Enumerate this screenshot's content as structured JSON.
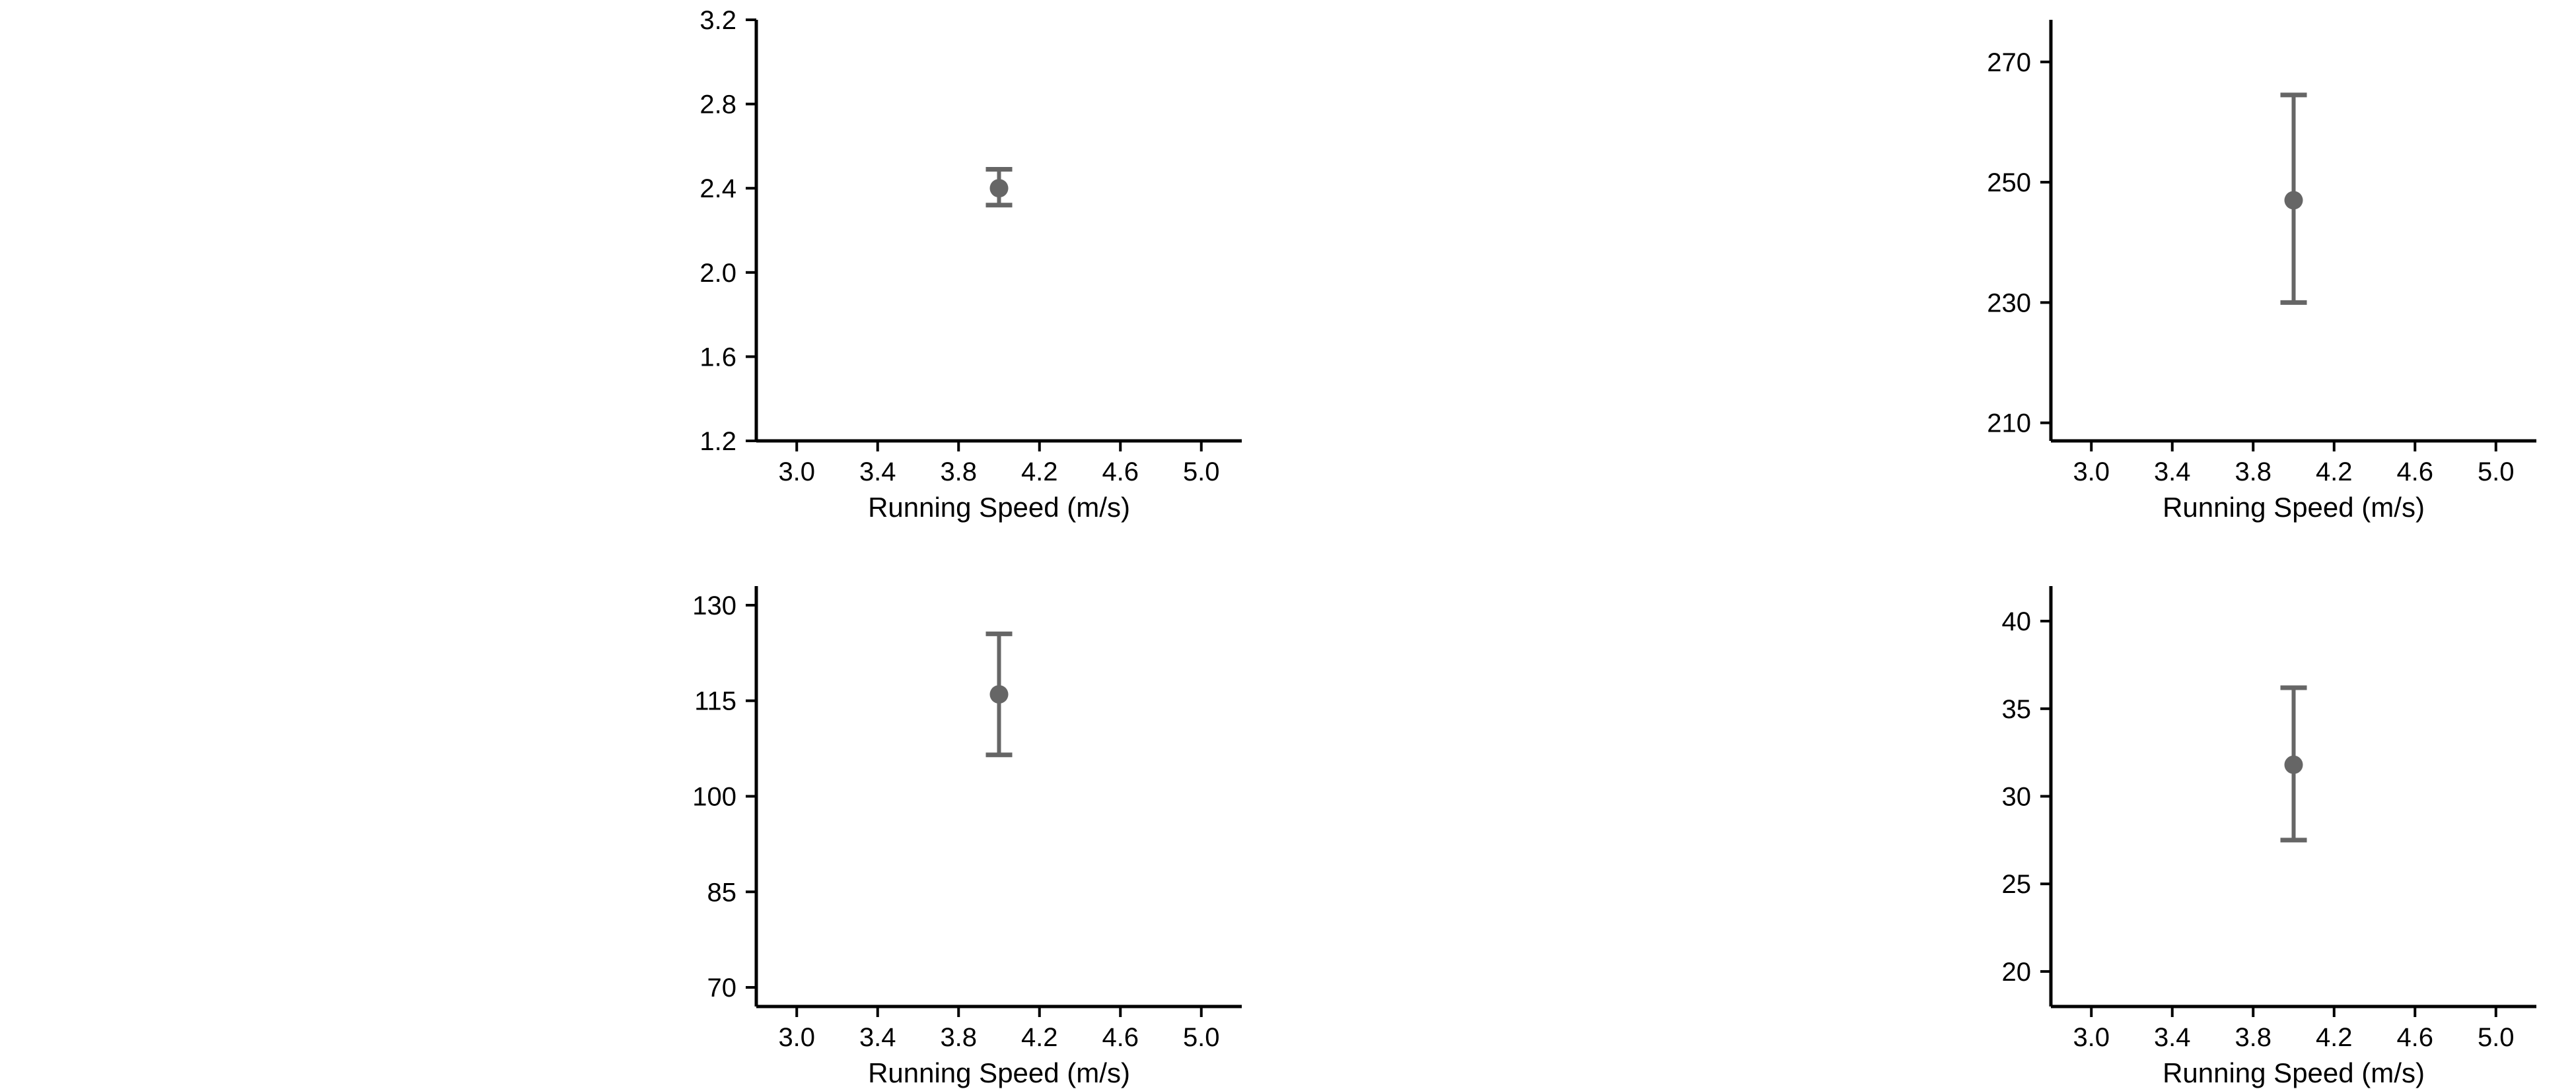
{
  "style": {
    "marker_color": "#666666",
    "axis_color": "#000000"
  },
  "chart_data": [
    {
      "type": "scatter",
      "xlabel": "Running Speed (m/s)",
      "ylabel": "",
      "xlim": [
        2.8,
        5.2
      ],
      "ylim": [
        1.2,
        3.2
      ],
      "xticks": [
        "3.0",
        "3.4",
        "3.8",
        "4.2",
        "4.6",
        "5.0"
      ],
      "yticks": [
        "1.2",
        "1.6",
        "2.0",
        "2.4",
        "2.8",
        "3.2"
      ],
      "points": [
        {
          "x": 4.0,
          "y": 2.4,
          "err_low": 2.32,
          "err_high": 2.49
        }
      ]
    },
    {
      "type": "scatter",
      "xlabel": "Running Speed (m/s)",
      "ylabel": "",
      "xlim": [
        2.8,
        5.2
      ],
      "ylim": [
        207,
        277
      ],
      "xticks": [
        "3.0",
        "3.4",
        "3.8",
        "4.2",
        "4.6",
        "5.0"
      ],
      "yticks": [
        "210",
        "230",
        "250",
        "270"
      ],
      "points": [
        {
          "x": 4.0,
          "y": 247,
          "err_low": 230,
          "err_high": 264.5
        }
      ]
    },
    {
      "type": "scatter",
      "xlabel": "Running Speed (m/s)",
      "ylabel": "",
      "xlim": [
        2.8,
        5.2
      ],
      "ylim": [
        67,
        133
      ],
      "xticks": [
        "3.0",
        "3.4",
        "3.8",
        "4.2",
        "4.6",
        "5.0"
      ],
      "yticks": [
        "70",
        "85",
        "100",
        "115",
        "130"
      ],
      "points": [
        {
          "x": 4.0,
          "y": 116,
          "err_low": 106.5,
          "err_high": 125.5
        }
      ]
    },
    {
      "type": "scatter",
      "xlabel": "Running Speed (m/s)",
      "ylabel": "",
      "xlim": [
        2.8,
        5.2
      ],
      "ylim": [
        18,
        42
      ],
      "xticks": [
        "3.0",
        "3.4",
        "3.8",
        "4.2",
        "4.6",
        "5.0"
      ],
      "yticks": [
        "20",
        "25",
        "30",
        "35",
        "40"
      ],
      "points": [
        {
          "x": 4.0,
          "y": 31.8,
          "err_low": 27.5,
          "err_high": 36.2
        }
      ]
    }
  ]
}
